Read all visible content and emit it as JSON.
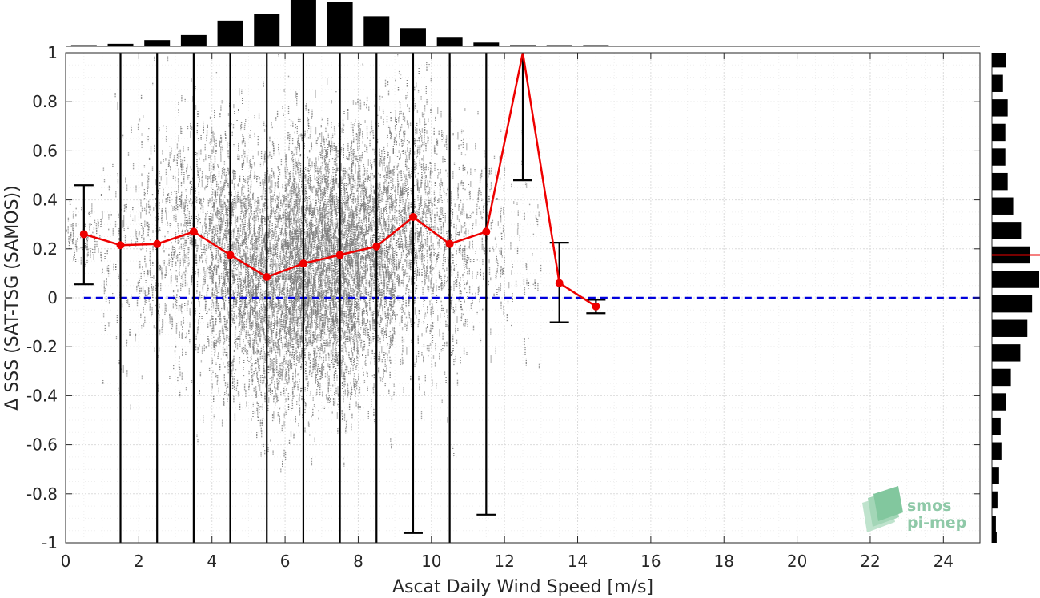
{
  "chart_data": {
    "type": "scatter",
    "xlabel": "Ascat Daily Wind Speed [m/s]",
    "ylabel": "Δ SSS (SAT-TSG (SAMOS))",
    "xlim": [
      0,
      25
    ],
    "ylim": [
      -1,
      1
    ],
    "xticks": [
      0,
      2,
      4,
      6,
      8,
      10,
      12,
      14,
      16,
      18,
      20,
      22,
      24
    ],
    "yticks": [
      -1,
      -0.8,
      -0.6,
      -0.4,
      -0.2,
      0,
      0.2,
      0.4,
      0.6,
      0.8,
      1
    ],
    "grid": true,
    "zero_line": {
      "y": 0,
      "color": "#0000dd",
      "style": "dashed"
    },
    "scatter_color": "#808080",
    "series": [
      {
        "type": "line",
        "color": "#ee0000",
        "x": [
          0.5,
          1.5,
          2.5,
          3.5,
          4.5,
          5.5,
          6.5,
          7.5,
          8.5,
          9.5,
          10.5,
          11.5,
          12.5,
          13.5,
          14.5
        ],
        "mean": [
          0.26,
          0.215,
          0.22,
          0.27,
          0.175,
          0.085,
          0.14,
          0.175,
          0.21,
          0.33,
          0.22,
          0.27,
          1.05,
          0.06,
          -0.035
        ],
        "err_low": [
          0.055,
          -1.2,
          -1.2,
          -1.2,
          -1.2,
          -1.2,
          -1.2,
          -1.2,
          -1.2,
          -0.96,
          -1.2,
          -0.885,
          0.48,
          -0.1,
          -0.063
        ],
        "err_high": [
          0.46,
          1.2,
          1.2,
          1.2,
          1.2,
          1.2,
          1.2,
          1.2,
          1.2,
          1.2,
          1.2,
          1.2,
          1.2,
          0.225,
          -0.008
        ]
      }
    ],
    "top_histogram": {
      "x": [
        0.5,
        1.5,
        2.5,
        3.5,
        4.5,
        5.5,
        6.5,
        7.5,
        8.5,
        9.5,
        10.5,
        11.5,
        12.5,
        13.5,
        14.5
      ],
      "counts": [
        1,
        4,
        10,
        18,
        41,
        52,
        74,
        71,
        48,
        29,
        15,
        6,
        2,
        1,
        0.5
      ]
    },
    "right_histogram": {
      "y": [
        0.975,
        0.875,
        0.775,
        0.675,
        0.575,
        0.475,
        0.375,
        0.275,
        0.175,
        0.075,
        -0.025,
        -0.125,
        -0.225,
        -0.325,
        -0.425,
        -0.525,
        -0.625,
        -0.725,
        -0.825,
        -0.925,
        -0.99
      ],
      "counts": [
        18,
        14,
        20,
        17,
        17,
        20,
        27,
        37,
        48,
        60,
        51,
        45,
        36,
        24,
        18,
        11,
        12,
        9,
        7,
        5,
        6
      ],
      "mean_marker": 0.175,
      "mean_marker_color": "#ee0000"
    }
  },
  "logo": {
    "line1": "smos",
    "line2": "pi-mep"
  }
}
